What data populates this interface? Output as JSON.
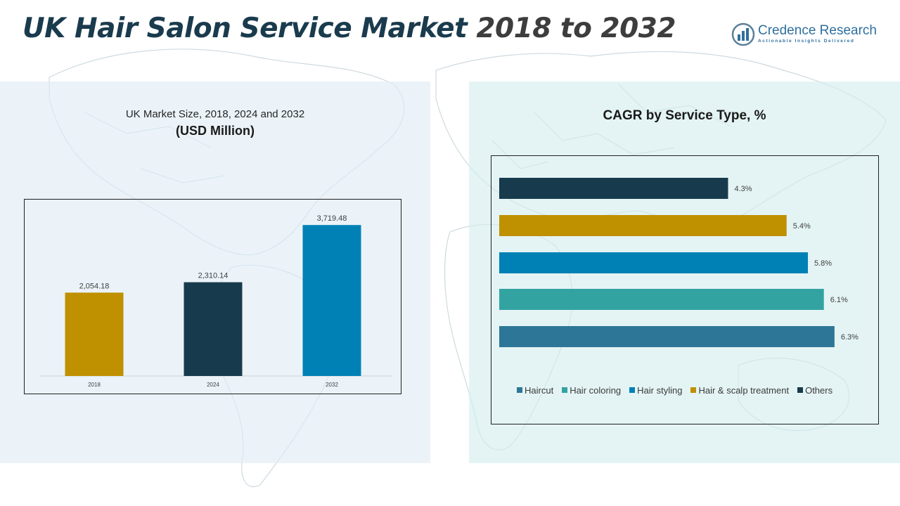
{
  "header": {
    "title_part1": "UK Hair Salon Service Market",
    "title_part2": "2018 to 2032"
  },
  "logo": {
    "name": "Credence Research",
    "tagline": "Actionable Insights Delivered",
    "icon": "bar-chart-globe-icon"
  },
  "left_panel": {
    "title_line1": "UK Market Size, 2018, 2024 and 2032",
    "title_line2": "(USD Million)"
  },
  "right_panel": {
    "title": "CAGR by Service Type, %"
  },
  "colors": {
    "title_primary": "#1a3b4d",
    "title_secondary": "#3d3d3d",
    "gold": "#bf9000",
    "navy": "#173b4c",
    "blue": "#0081b5",
    "teal": "#33a3a2",
    "steel_blue": "#2e7698"
  },
  "chart_data": [
    {
      "type": "bar",
      "categories": [
        "2018",
        "2024",
        "2032"
      ],
      "values": [
        2054.18,
        2310.14,
        3719.48
      ],
      "value_labels": [
        "2,054.18",
        "2,310.14",
        "3,719.48"
      ],
      "colors": [
        "#bf9000",
        "#173b4c",
        "#0081b5"
      ],
      "ylim": [
        0,
        4000
      ],
      "grid": false
    },
    {
      "type": "bar",
      "orientation": "horizontal",
      "categories": [
        "Others",
        "Hair & scalp treatment",
        "Hair styling",
        "Hair coloring",
        "Haircut"
      ],
      "values": [
        4.3,
        5.4,
        5.8,
        6.1,
        6.3
      ],
      "value_labels": [
        "4.3%",
        "5.4%",
        "5.8%",
        "6.1%",
        "6.3%"
      ],
      "colors": [
        "#173b4c",
        "#bf9000",
        "#0081b5",
        "#33a3a2",
        "#2e7698"
      ],
      "xlim": [
        0,
        6.5
      ],
      "legend": {
        "placement": "bottom",
        "entries": [
          {
            "name": "Haircut",
            "color": "#2e7698"
          },
          {
            "name": "Hair coloring",
            "color": "#33a3a2"
          },
          {
            "name": "Hair styling",
            "color": "#0081b5"
          },
          {
            "name": "Hair & scalp treatment",
            "color": "#bf9000"
          },
          {
            "name": "Others",
            "color": "#173b4c"
          }
        ]
      },
      "grid": false
    }
  ]
}
